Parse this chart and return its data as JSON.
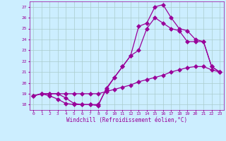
{
  "background_color": "#cceeff",
  "grid_color": "#aacccc",
  "line_color": "#990099",
  "marker": "D",
  "xlabel": "Windchill (Refroidissement éolien,°C)",
  "ylabel_ticks": [
    18,
    19,
    20,
    21,
    22,
    23,
    24,
    25,
    26,
    27
  ],
  "xlim": [
    -0.5,
    23.5
  ],
  "ylim": [
    17.5,
    27.5
  ],
  "xticks": [
    0,
    1,
    2,
    3,
    4,
    5,
    6,
    7,
    8,
    9,
    10,
    11,
    12,
    13,
    14,
    15,
    16,
    17,
    18,
    19,
    20,
    21,
    22,
    23
  ],
  "line1_x": [
    0,
    1,
    2,
    3,
    4,
    5,
    6,
    7,
    8,
    9,
    10,
    11,
    12,
    13,
    14,
    15,
    16,
    17,
    18,
    19,
    20,
    21,
    22,
    23
  ],
  "line1_y": [
    18.8,
    19.0,
    19.0,
    19.0,
    19.0,
    19.0,
    19.0,
    19.0,
    19.0,
    19.2,
    19.4,
    19.6,
    19.8,
    20.1,
    20.3,
    20.5,
    20.7,
    21.0,
    21.2,
    21.4,
    21.5,
    21.5,
    21.2,
    21.0
  ],
  "line2_x": [
    0,
    1,
    2,
    3,
    4,
    5,
    6,
    7,
    8,
    9,
    10,
    11,
    12,
    13,
    14,
    15,
    16,
    17,
    18,
    19,
    20,
    21,
    22,
    23
  ],
  "line2_y": [
    18.8,
    19.0,
    19.0,
    19.0,
    18.6,
    18.1,
    18.0,
    18.0,
    18.0,
    19.4,
    20.5,
    21.5,
    22.5,
    23.0,
    25.0,
    26.0,
    25.5,
    25.0,
    24.8,
    23.8,
    23.8,
    23.8,
    21.5,
    21.0
  ],
  "line3_x": [
    0,
    1,
    2,
    3,
    4,
    5,
    6,
    7,
    8,
    9,
    10,
    11,
    12,
    13,
    14,
    15,
    16,
    17,
    18,
    19,
    20,
    21,
    22,
    23
  ],
  "line3_y": [
    18.8,
    19.0,
    18.8,
    18.5,
    18.1,
    18.0,
    18.0,
    18.0,
    17.9,
    19.5,
    20.5,
    21.5,
    22.5,
    25.2,
    25.5,
    27.0,
    27.2,
    26.0,
    25.0,
    24.8,
    24.0,
    23.8,
    21.5,
    21.0
  ]
}
